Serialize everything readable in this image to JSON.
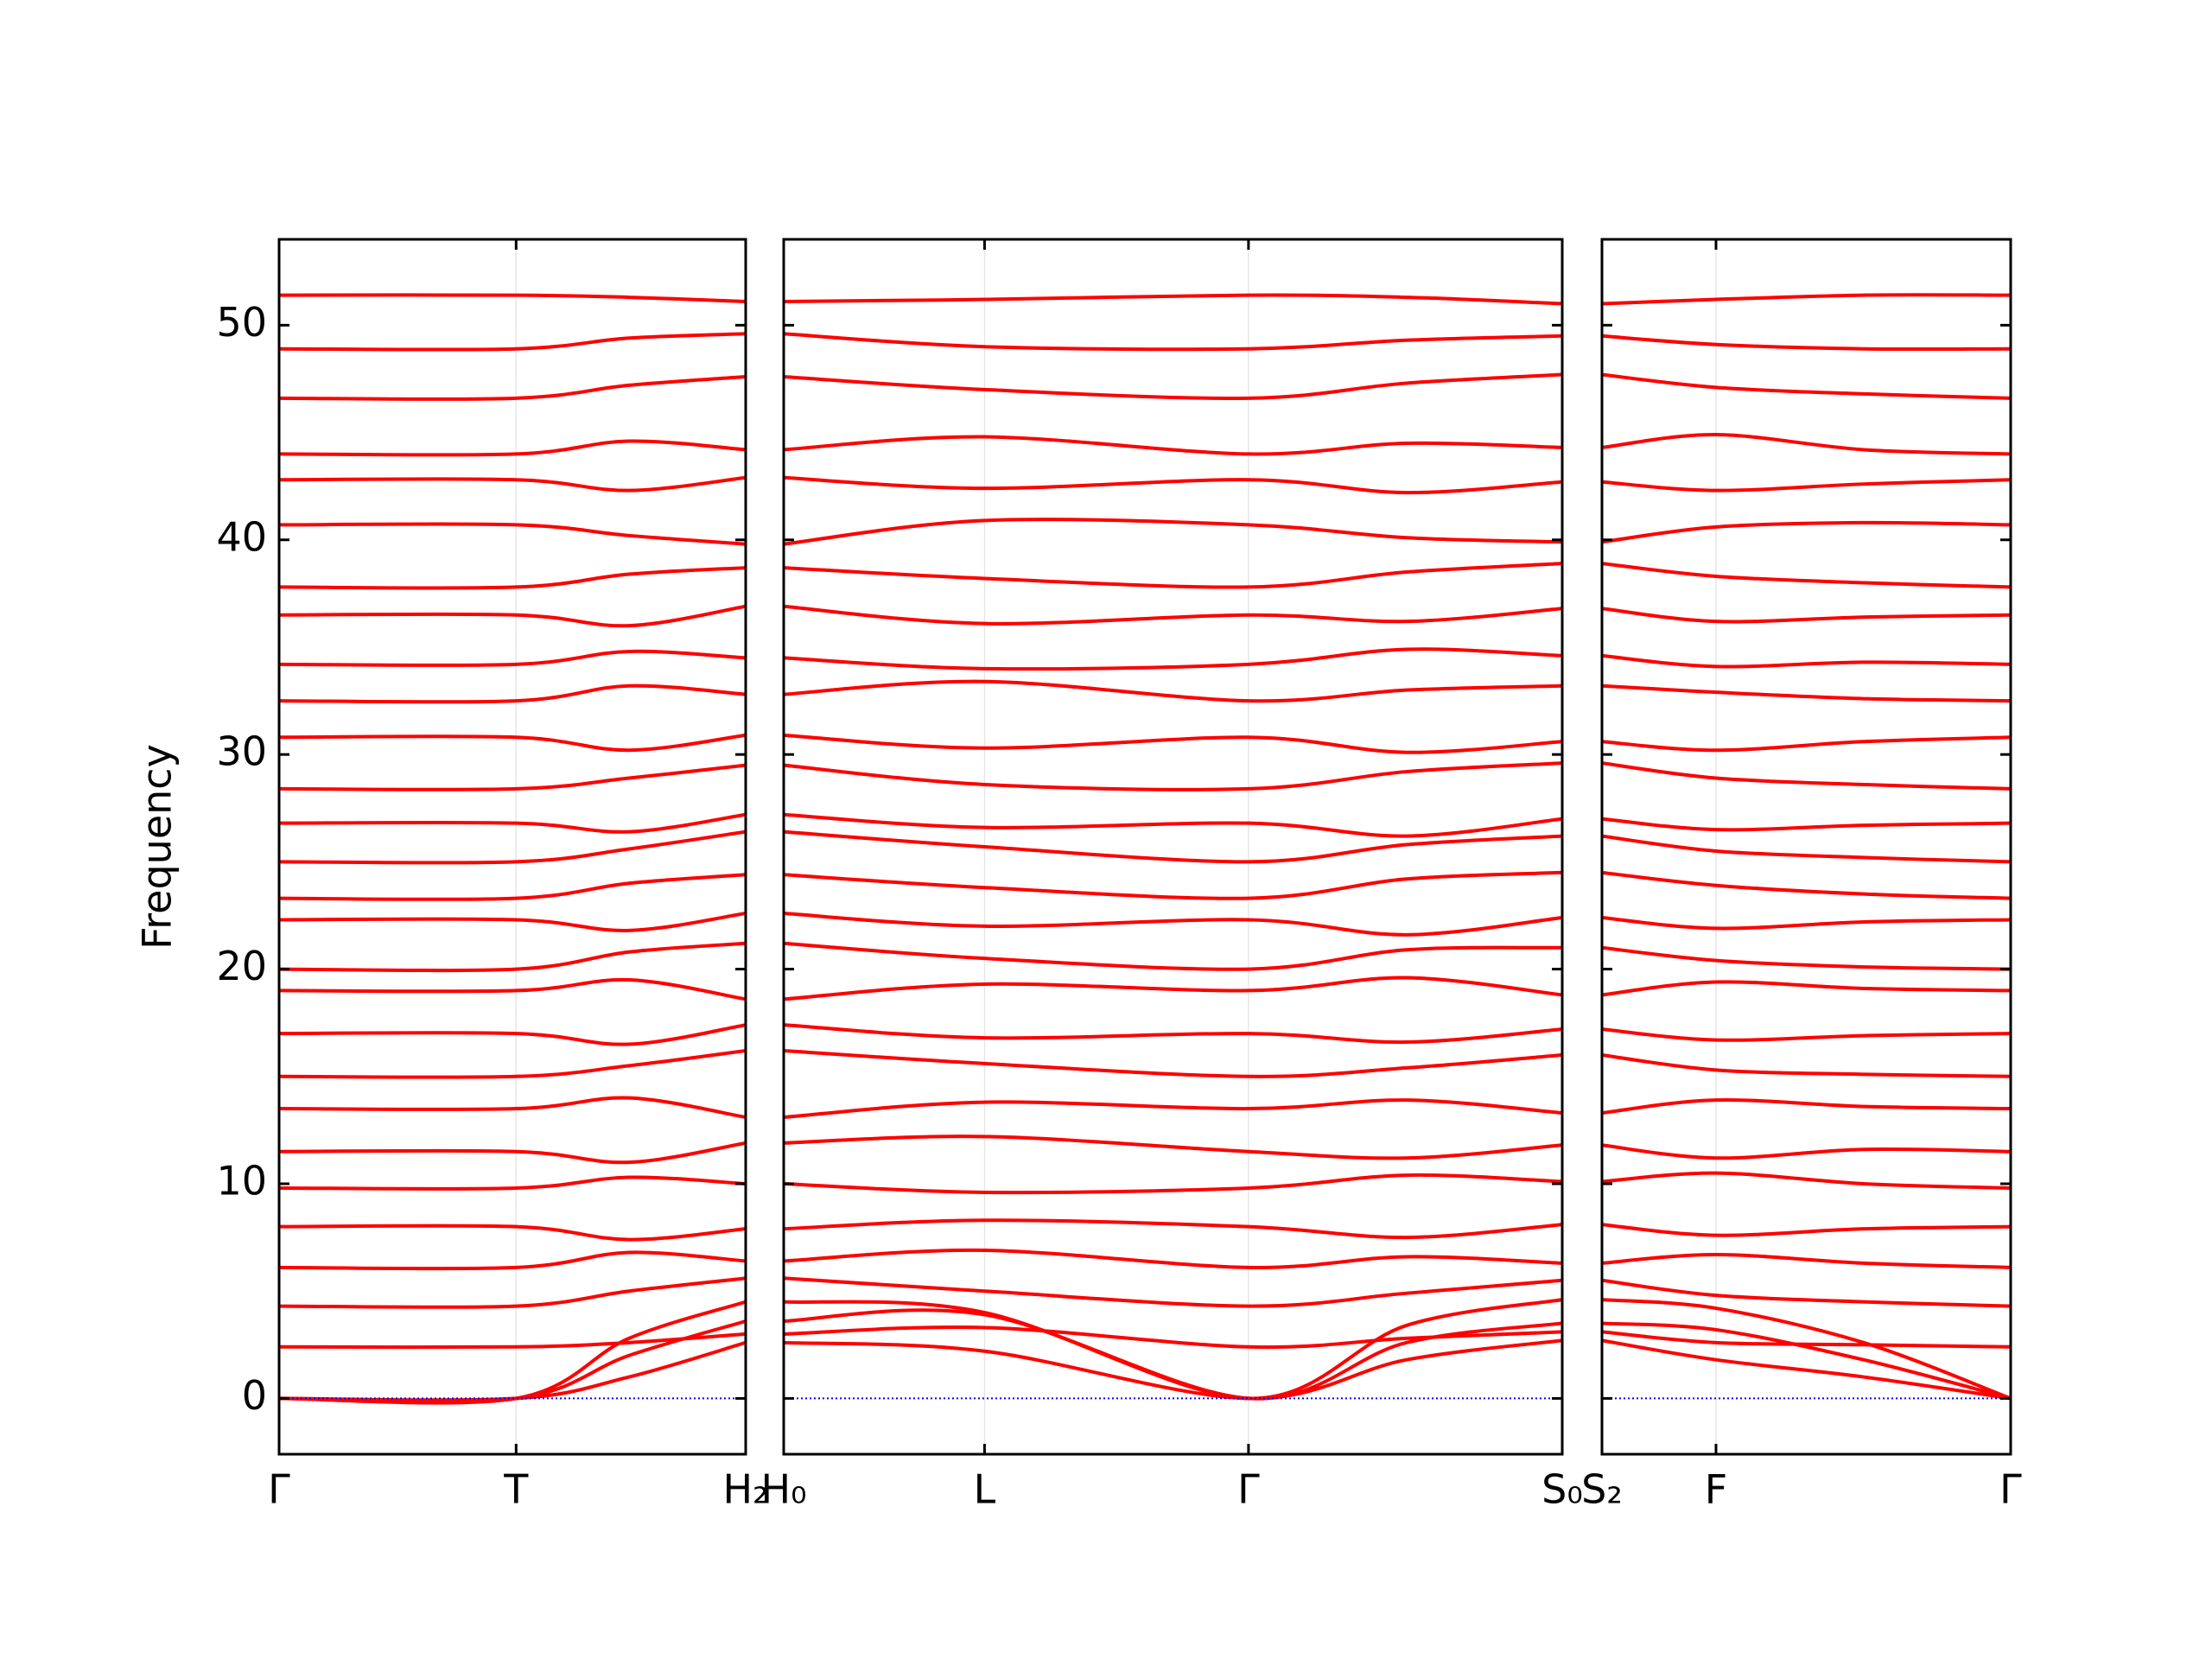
{
  "chart_data": [
    {
      "type": "line",
      "color": "#ff0000",
      "zero_line_color": "#0000ff",
      "ylabel": "Frequency",
      "ylim": [
        -2.6,
        54
      ],
      "yticks": [
        0,
        10,
        20,
        30,
        40,
        50
      ],
      "xlim": [
        0,
        1
      ],
      "x": [
        0,
        0.508,
        0.75,
        1
      ],
      "xticks": [
        {
          "value": 0,
          "label": "Γ"
        },
        {
          "value": 0.508,
          "label": "T"
        },
        {
          "value": 1,
          "label": "H₂"
        }
      ],
      "series": [
        {
          "values": [
            0,
            0,
            1.0,
            2.6
          ]
        },
        {
          "values": [
            0,
            0,
            2.0,
            3.6
          ]
        },
        {
          "values": [
            0,
            0,
            2.8,
            4.5
          ]
        },
        {
          "values": [
            2.4,
            2.4,
            2.6,
            3.0
          ]
        },
        {
          "values": [
            4.3,
            4.3,
            5.0,
            5.6
          ]
        },
        {
          "values": [
            6.1,
            6.1,
            6.8,
            6.4
          ]
        },
        {
          "values": [
            8.0,
            8.0,
            7.4,
            7.9
          ]
        },
        {
          "values": [
            9.8,
            9.8,
            10.3,
            10.0
          ]
        },
        {
          "values": [
            11.5,
            11.5,
            11.0,
            11.9
          ]
        },
        {
          "values": [
            13.5,
            13.5,
            14.0,
            13.1
          ]
        },
        {
          "values": [
            15.0,
            15.0,
            15.5,
            16.2
          ]
        },
        {
          "values": [
            17.0,
            17.0,
            16.5,
            17.4
          ]
        },
        {
          "values": [
            19.0,
            19.0,
            19.5,
            18.6
          ]
        },
        {
          "values": [
            20.0,
            20.0,
            20.8,
            21.2
          ]
        },
        {
          "values": [
            22.3,
            22.3,
            21.8,
            22.6
          ]
        },
        {
          "values": [
            23.3,
            23.3,
            24.0,
            24.4
          ]
        },
        {
          "values": [
            25.0,
            25.0,
            25.6,
            26.4
          ]
        },
        {
          "values": [
            26.8,
            26.8,
            26.4,
            27.2
          ]
        },
        {
          "values": [
            28.4,
            28.4,
            28.9,
            29.5
          ]
        },
        {
          "values": [
            30.8,
            30.8,
            30.2,
            30.9
          ]
        },
        {
          "values": [
            32.5,
            32.5,
            33.2,
            32.8
          ]
        },
        {
          "values": [
            34.2,
            34.2,
            34.8,
            34.5
          ]
        },
        {
          "values": [
            36.5,
            36.5,
            36.0,
            36.9
          ]
        },
        {
          "values": [
            37.8,
            37.8,
            38.4,
            38.7
          ]
        },
        {
          "values": [
            40.7,
            40.7,
            40.2,
            39.8
          ]
        },
        {
          "values": [
            42.8,
            42.8,
            42.3,
            42.9
          ]
        },
        {
          "values": [
            44.0,
            44.0,
            44.6,
            44.2
          ]
        },
        {
          "values": [
            46.6,
            46.6,
            47.2,
            47.6
          ]
        },
        {
          "values": [
            48.9,
            48.9,
            49.4,
            49.6
          ]
        },
        {
          "values": [
            51.4,
            51.4,
            51.3,
            51.1
          ]
        }
      ]
    },
    {
      "type": "line",
      "color": "#ff0000",
      "zero_line_color": "#0000ff",
      "xlim": [
        0,
        1
      ],
      "x": [
        0,
        0.258,
        0.597,
        0.8,
        1
      ],
      "xticks": [
        {
          "value": 0,
          "label": "H₀"
        },
        {
          "value": 0.258,
          "label": "L"
        },
        {
          "value": 0.597,
          "label": "Γ"
        },
        {
          "value": 1,
          "label": "S₀"
        }
      ],
      "series": [
        {
          "values": [
            2.6,
            2.2,
            0,
            1.8,
            2.7
          ]
        },
        {
          "values": [
            3.6,
            3.9,
            0,
            2.6,
            3.5
          ]
        },
        {
          "values": [
            4.5,
            4.0,
            0,
            3.4,
            4.6
          ]
        },
        {
          "values": [
            3.0,
            3.3,
            2.4,
            2.8,
            3.1
          ]
        },
        {
          "values": [
            5.6,
            5.0,
            4.3,
            4.9,
            5.5
          ]
        },
        {
          "values": [
            6.4,
            6.9,
            6.1,
            6.6,
            6.3
          ]
        },
        {
          "values": [
            7.9,
            8.3,
            8.0,
            7.5,
            8.1
          ]
        },
        {
          "values": [
            10.0,
            9.6,
            9.8,
            10.4,
            10.1
          ]
        },
        {
          "values": [
            11.9,
            12.2,
            11.5,
            11.2,
            11.8
          ]
        },
        {
          "values": [
            13.1,
            13.8,
            13.5,
            13.9,
            13.3
          ]
        },
        {
          "values": [
            16.2,
            15.6,
            15.0,
            15.4,
            16.0
          ]
        },
        {
          "values": [
            17.4,
            16.8,
            17.0,
            16.6,
            17.2
          ]
        },
        {
          "values": [
            18.6,
            19.3,
            19.0,
            19.6,
            18.8
          ]
        },
        {
          "values": [
            21.2,
            20.5,
            20.0,
            20.9,
            21.0
          ]
        },
        {
          "values": [
            22.6,
            22.0,
            22.3,
            21.6,
            22.4
          ]
        },
        {
          "values": [
            24.4,
            23.8,
            23.3,
            24.2,
            24.5
          ]
        },
        {
          "values": [
            26.4,
            25.7,
            25.0,
            25.8,
            26.2
          ]
        },
        {
          "values": [
            27.2,
            26.6,
            26.8,
            26.2,
            27.0
          ]
        },
        {
          "values": [
            29.5,
            28.6,
            28.4,
            29.2,
            29.6
          ]
        },
        {
          "values": [
            30.9,
            30.3,
            30.8,
            30.1,
            30.6
          ]
        },
        {
          "values": [
            32.8,
            33.4,
            32.5,
            33.0,
            33.2
          ]
        },
        {
          "values": [
            34.5,
            34.0,
            34.2,
            34.9,
            34.6
          ]
        },
        {
          "values": [
            36.9,
            36.1,
            36.5,
            36.2,
            36.8
          ]
        },
        {
          "values": [
            38.7,
            38.2,
            37.8,
            38.5,
            38.9
          ]
        },
        {
          "values": [
            39.8,
            40.9,
            40.7,
            40.1,
            39.9
          ]
        },
        {
          "values": [
            42.9,
            42.4,
            42.8,
            42.2,
            42.7
          ]
        },
        {
          "values": [
            44.2,
            44.8,
            44.0,
            44.5,
            44.3
          ]
        },
        {
          "values": [
            47.6,
            47.0,
            46.6,
            47.3,
            47.7
          ]
        },
        {
          "values": [
            49.6,
            49.0,
            48.9,
            49.3,
            49.5
          ]
        },
        {
          "values": [
            51.1,
            51.2,
            51.4,
            51.3,
            51.0
          ]
        }
      ]
    },
    {
      "type": "line",
      "color": "#ff0000",
      "zero_line_color": "#0000ff",
      "xlim": [
        0,
        1
      ],
      "x": [
        0,
        0.279,
        0.64,
        1
      ],
      "xticks": [
        {
          "value": 0,
          "label": "S₂"
        },
        {
          "value": 0.279,
          "label": "F"
        },
        {
          "value": 1,
          "label": "Γ"
        }
      ],
      "series": [
        {
          "values": [
            2.7,
            1.8,
            1.0,
            0
          ]
        },
        {
          "values": [
            3.5,
            3.2,
            1.8,
            0
          ]
        },
        {
          "values": [
            4.6,
            4.2,
            2.6,
            0
          ]
        },
        {
          "values": [
            3.1,
            2.6,
            2.5,
            2.4
          ]
        },
        {
          "values": [
            5.5,
            4.8,
            4.5,
            4.3
          ]
        },
        {
          "values": [
            6.3,
            6.7,
            6.3,
            6.1
          ]
        },
        {
          "values": [
            8.1,
            7.6,
            7.9,
            8.0
          ]
        },
        {
          "values": [
            10.1,
            10.5,
            10.0,
            9.8
          ]
        },
        {
          "values": [
            11.8,
            11.2,
            11.6,
            11.5
          ]
        },
        {
          "values": [
            13.3,
            13.9,
            13.6,
            13.5
          ]
        },
        {
          "values": [
            16.0,
            15.3,
            15.1,
            15.0
          ]
        },
        {
          "values": [
            17.2,
            16.7,
            16.9,
            17.0
          ]
        },
        {
          "values": [
            18.8,
            19.4,
            19.1,
            19.0
          ]
        },
        {
          "values": [
            21.0,
            20.4,
            20.1,
            20.0
          ]
        },
        {
          "values": [
            22.4,
            21.9,
            22.2,
            22.3
          ]
        },
        {
          "values": [
            24.5,
            23.9,
            23.5,
            23.3
          ]
        },
        {
          "values": [
            26.2,
            25.5,
            25.2,
            25.0
          ]
        },
        {
          "values": [
            27.0,
            26.5,
            26.7,
            26.8
          ]
        },
        {
          "values": [
            29.6,
            28.9,
            28.6,
            28.4
          ]
        },
        {
          "values": [
            30.6,
            30.2,
            30.6,
            30.8
          ]
        },
        {
          "values": [
            33.2,
            32.9,
            32.6,
            32.5
          ]
        },
        {
          "values": [
            34.6,
            34.1,
            34.3,
            34.2
          ]
        },
        {
          "values": [
            36.8,
            36.2,
            36.4,
            36.5
          ]
        },
        {
          "values": [
            38.9,
            38.3,
            38.0,
            37.8
          ]
        },
        {
          "values": [
            39.9,
            40.6,
            40.8,
            40.7
          ]
        },
        {
          "values": [
            42.7,
            42.3,
            42.6,
            42.8
          ]
        },
        {
          "values": [
            44.3,
            44.9,
            44.2,
            44.0
          ]
        },
        {
          "values": [
            47.7,
            47.1,
            46.8,
            46.6
          ]
        },
        {
          "values": [
            49.5,
            49.1,
            48.9,
            48.9
          ]
        },
        {
          "values": [
            51.0,
            51.2,
            51.4,
            51.4
          ]
        }
      ]
    }
  ]
}
